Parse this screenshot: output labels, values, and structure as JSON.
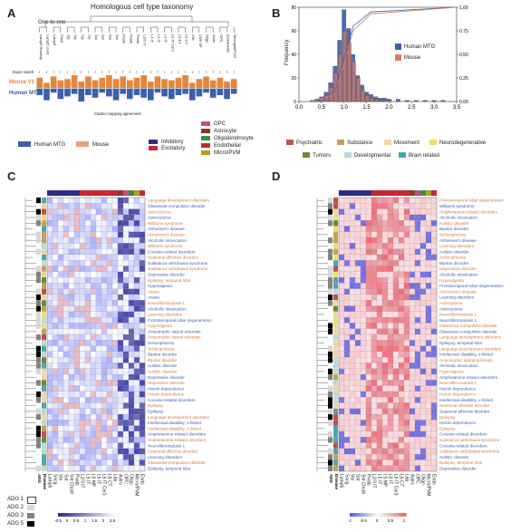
{
  "panel_a": {
    "letter": "A",
    "title": "Homologous cell type taxonomy",
    "subtitle": "One-to-one",
    "row_labels": {
      "exact": "Exact match",
      "mouse": "Mouse V1",
      "human": "Human MTG"
    },
    "footer": "Cluster mapping agreement",
    "mouse_color": "#e8853a",
    "human_color": "#3b5fae",
    "cell_types": [
      "Lamp5 Rosehip",
      "Lamp5 Lhx6",
      "Lamp5",
      "Pax6",
      "Vip",
      "Vip",
      "Vip",
      "Vip",
      "Sst",
      "Sst",
      "Sst",
      "Sst",
      "Pvalb",
      "Pvalb",
      "Pvalb",
      "L2/3 IT",
      "L4 IT",
      "L5 IT",
      "L6 IT",
      "L6 IT Car3",
      "L5 ET",
      "L6 CT",
      "L6b",
      "L5/6 NP",
      "Oligo",
      "Astro",
      "OPC",
      "Endothelial",
      "Microglia/PVM"
    ],
    "mouse_bars": [
      0.8,
      0.4,
      0.9,
      0.6,
      0.7,
      1.0,
      0.5,
      0.9,
      0.6,
      0.8,
      1.0,
      0.7,
      0.9,
      0.6,
      0.8,
      1.0,
      0.5,
      0.9,
      0.7,
      0.6,
      0.8,
      1.0,
      0.4,
      0.7,
      0.9,
      0.6,
      0.8,
      0.5,
      0.7
    ],
    "human_bars": [
      0.5,
      0.9,
      0.3,
      0.8,
      0.6,
      0.4,
      1.0,
      0.5,
      0.7,
      0.3,
      0.6,
      0.9,
      0.4,
      0.8,
      0.5,
      0.7,
      0.9,
      0.3,
      0.6,
      0.8,
      0.5,
      0.4,
      0.9,
      0.6,
      0.3,
      0.7,
      0.5,
      0.8,
      0.4
    ]
  },
  "panel_b": {
    "letter": "B",
    "chart_data": {
      "type": "bar",
      "xlabel": "",
      "ylabel": "Frequency",
      "xlim": [
        0,
        3.5
      ],
      "ylim": [
        0,
        80
      ],
      "xticks": [
        "0.0",
        "0.5",
        "1.0",
        "1.5",
        "2.0",
        "2.5",
        "3.0",
        "3.5"
      ],
      "yticks": [
        "0",
        "20",
        "40",
        "60",
        "80"
      ],
      "y2ticks": [
        "0.00",
        "0.25",
        "0.50",
        "0.75",
        "1.00"
      ],
      "series": [
        {
          "name": "Human MTG",
          "color": "#3b5fae",
          "x": [
            0.3,
            0.4,
            0.5,
            0.6,
            0.7,
            0.8,
            0.9,
            1.0,
            1.1,
            1.2,
            1.3,
            1.4,
            1.5,
            1.6,
            1.7,
            1.8,
            1.9,
            2.0,
            2.2,
            2.4,
            2.6,
            2.8,
            3.0,
            3.2
          ],
          "values": [
            1,
            2,
            4,
            8,
            16,
            30,
            52,
            78,
            62,
            40,
            22,
            14,
            8,
            6,
            4,
            3,
            3,
            2,
            2,
            1,
            1,
            1,
            1,
            1
          ]
        },
        {
          "name": "Mouse",
          "color": "#e07a5f",
          "x": [
            0.3,
            0.4,
            0.5,
            0.6,
            0.7,
            0.8,
            0.9,
            1.0,
            1.1,
            1.2,
            1.3,
            1.4,
            1.5,
            1.6,
            1.7,
            1.8,
            1.9,
            2.0
          ],
          "values": [
            1,
            1,
            3,
            6,
            12,
            24,
            40,
            60,
            50,
            34,
            20,
            10,
            5,
            3,
            2,
            1,
            1,
            1
          ]
        }
      ],
      "cdf_human": [
        [
          0.3,
          0.0
        ],
        [
          0.8,
          0.1
        ],
        [
          1.0,
          0.45
        ],
        [
          1.2,
          0.8
        ],
        [
          1.6,
          0.95
        ],
        [
          3.5,
          1.0
        ]
      ],
      "cdf_mouse": [
        [
          0.3,
          0.0
        ],
        [
          0.8,
          0.08
        ],
        [
          1.0,
          0.4
        ],
        [
          1.2,
          0.75
        ],
        [
          1.6,
          0.93
        ],
        [
          3.5,
          1.0
        ]
      ]
    }
  },
  "legend_mid": {
    "species": [
      {
        "label": "Human MTG",
        "color": "#3b5fae"
      },
      {
        "label": "Mouse",
        "color": "#e8a07a"
      }
    ],
    "class": [
      {
        "label": "Inhibitory",
        "color": "#2c2c8a"
      },
      {
        "label": "Excitatory",
        "color": "#c8262c"
      }
    ],
    "glia": [
      {
        "label": "OPC",
        "color": "#c44b88"
      },
      {
        "label": "Astrocyte",
        "color": "#8a3a2a"
      },
      {
        "label": "Oligodendrocyte",
        "color": "#3a8f4a"
      },
      {
        "label": "Endothelial",
        "color": "#c92a2a"
      },
      {
        "label": "Micro/PVM",
        "color": "#b0a020"
      }
    ],
    "disease": [
      {
        "label": "Psychiatric",
        "color": "#c0504d"
      },
      {
        "label": "Substance",
        "color": "#c8a055"
      },
      {
        "label": "Movement",
        "color": "#f2d6a0"
      },
      {
        "label": "Neurodegenerative",
        "color": "#f0e060"
      },
      {
        "label": "Tumors",
        "color": "#6a8a3a"
      },
      {
        "label": "Developmental",
        "color": "#b8dcd8"
      },
      {
        "label": "Brain related",
        "color": "#4aa8b0"
      }
    ]
  },
  "panel_c": {
    "letter": "C",
    "diseases": [
      "Language development disorders",
      "Obsessive-compulsive disorder",
      "Astrocytoma",
      "Astrocytoma",
      "Williams syndrome",
      "Alzheimer's disease",
      "Alzheimer's disease",
      "Alcoholic intoxication",
      "Williams syndrome",
      "Cocaine-related disorders",
      "Seasonal affective disorder",
      "Substance withdrawal syndrome",
      "Substance withdrawal syndrome",
      "Depressive disorder",
      "Epilepsy, temporal lobe",
      "Hyperalgesia",
      "Ataxia",
      "Ataxia",
      "Neurofibromatosis 1",
      "Alcoholic intoxication",
      "Learning disorders",
      "Frontotemporal lobar degeneration",
      "Hyperalgesia",
      "Amyotrophic lateral sclerosis",
      "Amyotrophic lateral sclerosis",
      "Schizophrenia",
      "Schizophrenia",
      "Bipolar disorder",
      "Bipolar disorder",
      "Autistic disorder",
      "Autistic disorder",
      "Depressive disorder",
      "Depressive disorder",
      "Heroin dependence",
      "Heroin dependence",
      "Cocaine-related disorders",
      "Epilepsy",
      "Epilepsy",
      "Language development disorders",
      "Intellectual disability, x-linked",
      "Intellectual disability, x-linked",
      "Amphetamine-related disorders",
      "Amphetamine-related disorders",
      "Neurofibromatosis 1",
      "Seasonal affective disorder",
      "Learning disorders",
      "Obsessive-compulsive disorder",
      "Epilepsy, temporal lobe"
    ],
    "columns": [
      "Lamp5",
      "Sncg",
      "Vip",
      "Sst",
      "Sst Chodl",
      "Pvalb",
      "L2/3 IT",
      "L5 IT",
      "L5 NP",
      "L6 IT",
      "L6 IT Car3",
      "L6 CT",
      "L6b",
      "Astro",
      "OPC",
      "Oligo",
      "Micro/PVM",
      "Endo"
    ],
    "bottom_tags": [
      "ADG",
      "Disease"
    ],
    "scale_ticks": [
      "-0.5",
      "0",
      "0.5",
      "1",
      "1.5",
      "2",
      "2.5"
    ]
  },
  "panel_d": {
    "letter": "D",
    "diseases": [
      "Frontotemporal lobar degeneration",
      "Williams syndrome",
      "Amphetamine-related disorders",
      "Alcoholic intoxication",
      "Autistic disorder",
      "Bipolar disorder",
      "Schizophrenia",
      "Alzheimer's disease",
      "Learning disorders",
      "Autistic disorder",
      "Schizophrenia",
      "Bipolar disorder",
      "Depressive disorder",
      "Alcoholic intoxication",
      "Hyperalgesia",
      "Frontotemporal lobar degeneration",
      "Alzheimer's disease",
      "Learning disorders",
      "Astrocytoma",
      "Astrocytoma",
      "Neurofibromatosis 1",
      "Neurofibromatosis 1",
      "Obsessive-compulsive disorder",
      "Obsessive-compulsive disorder",
      "Language development disorders",
      "Epilepsy, temporal lobe",
      "Language development disorders",
      "Intellectual disability, x-linked",
      "Amyotrophic lateral sclerosis",
      "Alcoholic intoxication",
      "Hyperalgesia",
      "Amphetamine-related disorders",
      "Neurofibromatosis 1",
      "Heroin dependence",
      "Heroin dependence",
      "Intellectual disability, x-linked",
      "Seasonal affective disorder",
      "Seasonal affective disorder",
      "Epilepsy",
      "Heroin dependence",
      "Epilepsy",
      "Cocaine-related disorders",
      "Substance withdrawal syndrome",
      "Cocaine-related disorders",
      "Substance withdrawal syndrome",
      "Autistic disorder",
      "Epilepsy, temporal lobe",
      "Depressive disorder"
    ],
    "columns": [
      "Lamp5",
      "Sncg",
      "Vip",
      "Sst",
      "Sst Chodl",
      "Pvalb",
      "L2/3 IT",
      "L5 IT",
      "L5 NP",
      "L6 IT",
      "L6 IT Car3",
      "L6 CT",
      "L6b",
      "Astro",
      "OPC",
      "Oligo",
      "Micro/PVM",
      "Endo"
    ],
    "bottom_tags": [
      "ADG",
      "Disease"
    ],
    "scale_ticks": [
      "-1",
      "-0.5",
      "0",
      "0.5",
      "1"
    ]
  },
  "adg_legend": [
    {
      "label": "ADG 1",
      "color": "#ffffff"
    },
    {
      "label": "ADG 2",
      "color": "#d8d8d8"
    },
    {
      "label": "ADG 3",
      "color": "#808080"
    },
    {
      "label": "ADG 5",
      "color": "#000000"
    }
  ]
}
